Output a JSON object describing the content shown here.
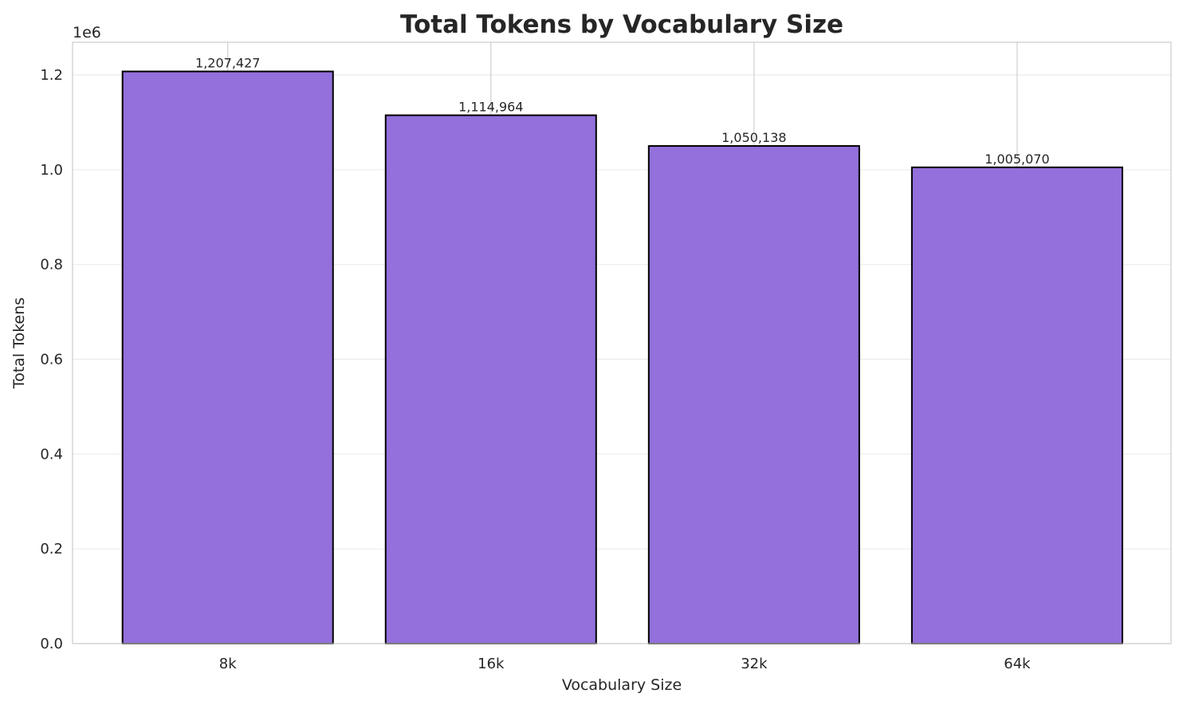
{
  "chart_data": {
    "type": "bar",
    "title": "Total Tokens by Vocabulary Size",
    "xlabel": "Vocabulary Size",
    "ylabel": "Total Tokens",
    "y_offset_label": "1e6",
    "categories": [
      "8k",
      "16k",
      "32k",
      "64k"
    ],
    "values": [
      1207427,
      1114964,
      1050138,
      1005070
    ],
    "data_labels": [
      "1,207,427",
      "1,114,964",
      "1,050,138",
      "1,005,070"
    ],
    "yticks": [
      0,
      200000,
      400000,
      600000,
      800000,
      1000000,
      1200000
    ],
    "ytick_labels": [
      "0.0",
      "0.2",
      "0.4",
      "0.6",
      "0.8",
      "1.0",
      "1.2"
    ],
    "ylim": [
      0,
      1269000
    ],
    "grid": true,
    "colors": {
      "bar": "#9370DB",
      "edge": "#000000"
    }
  }
}
